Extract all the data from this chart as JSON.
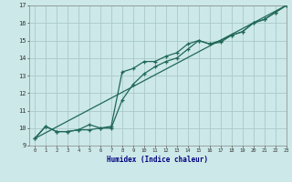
{
  "xlabel": "Humidex (Indice chaleur)",
  "bg_color": "#cce8e8",
  "grid_color": "#aacaca",
  "line_color": "#206858",
  "line1_x": [
    0,
    1,
    2,
    3,
    4,
    5,
    6,
    7,
    8,
    9,
    10,
    11,
    12,
    13,
    14,
    15,
    16,
    17,
    18,
    19,
    20,
    21,
    22,
    23
  ],
  "line1_y": [
    9.4,
    10.1,
    9.8,
    9.8,
    9.9,
    10.2,
    10.0,
    10.1,
    13.2,
    13.4,
    13.8,
    13.8,
    14.1,
    14.3,
    14.8,
    15.0,
    14.8,
    14.9,
    15.3,
    15.5,
    16.0,
    16.2,
    16.6,
    17.0
  ],
  "line2_x": [
    0,
    1,
    2,
    3,
    4,
    5,
    6,
    7,
    8,
    9,
    10,
    11,
    12,
    13,
    14,
    15,
    16,
    17,
    18,
    19,
    20,
    21,
    22,
    23
  ],
  "line2_y": [
    9.4,
    10.1,
    9.8,
    9.8,
    9.9,
    9.9,
    10.0,
    10.0,
    11.6,
    12.5,
    13.1,
    13.5,
    13.8,
    14.0,
    14.5,
    15.0,
    14.8,
    15.0,
    15.3,
    15.5,
    16.0,
    16.2,
    16.6,
    17.0
  ],
  "line3_x": [
    0,
    23
  ],
  "line3_y": [
    9.4,
    17.0
  ],
  "ylim": [
    9,
    17
  ],
  "xlim": [
    -0.5,
    23
  ],
  "yticks": [
    9,
    10,
    11,
    12,
    13,
    14,
    15,
    16,
    17
  ],
  "xticks": [
    0,
    1,
    2,
    3,
    4,
    5,
    6,
    7,
    8,
    9,
    10,
    11,
    12,
    13,
    14,
    15,
    16,
    17,
    18,
    19,
    20,
    21,
    22,
    23
  ]
}
